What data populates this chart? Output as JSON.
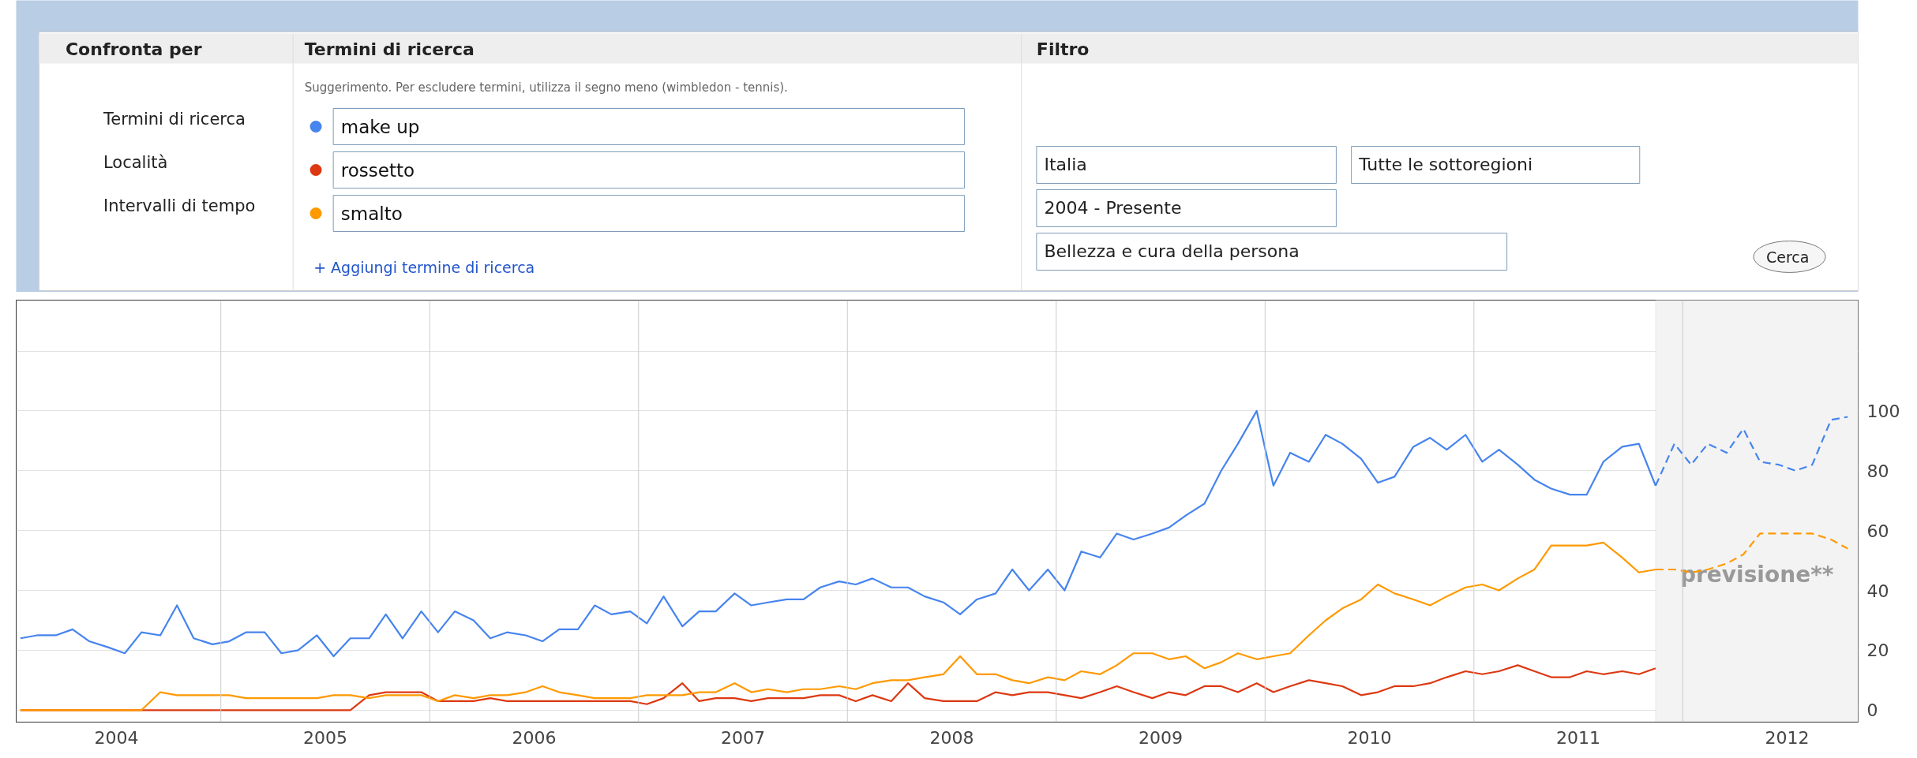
{
  "chart_data": {
    "type": "line",
    "x": [
      2004.04,
      2004.12,
      2004.21,
      2004.29,
      2004.37,
      2004.46,
      2004.54,
      2004.62,
      2004.71,
      2004.79,
      2004.87,
      2004.96,
      2005.04,
      2005.12,
      2005.21,
      2005.29,
      2005.37,
      2005.46,
      2005.54,
      2005.62,
      2005.71,
      2005.79,
      2005.87,
      2005.96,
      2006.04,
      2006.12,
      2006.21,
      2006.29,
      2006.37,
      2006.46,
      2006.54,
      2006.62,
      2006.71,
      2006.79,
      2006.87,
      2006.96,
      2007.04,
      2007.12,
      2007.21,
      2007.29,
      2007.37,
      2007.46,
      2007.54,
      2007.62,
      2007.71,
      2007.79,
      2007.87,
      2007.96,
      2008.04,
      2008.12,
      2008.21,
      2008.29,
      2008.37,
      2008.46,
      2008.54,
      2008.62,
      2008.71,
      2008.79,
      2008.87,
      2008.96,
      2009.04,
      2009.12,
      2009.21,
      2009.29,
      2009.37,
      2009.46,
      2009.54,
      2009.62,
      2009.71,
      2009.79,
      2009.87,
      2009.96,
      2010.04,
      2010.12,
      2010.21,
      2010.29,
      2010.37,
      2010.46,
      2010.54,
      2010.62,
      2010.71,
      2010.79,
      2010.87,
      2010.96,
      2011.04,
      2011.12,
      2011.21,
      2011.29,
      2011.37,
      2011.46,
      2011.54,
      2011.62,
      2011.71,
      2011.79,
      2011.87
    ],
    "series": [
      {
        "name": "make up",
        "color": "#4684ee",
        "values": [
          24,
          25,
          25,
          27,
          23,
          21,
          19,
          26,
          25,
          35,
          24,
          22,
          23,
          26,
          26,
          19,
          20,
          25,
          18,
          24,
          24,
          32,
          24,
          33,
          26,
          33,
          30,
          24,
          26,
          25,
          23,
          27,
          27,
          35,
          32,
          33,
          29,
          38,
          28,
          33,
          33,
          39,
          35,
          36,
          37,
          37,
          41,
          43,
          42,
          44,
          41,
          41,
          38,
          36,
          32,
          37,
          39,
          47,
          40,
          47,
          40,
          53,
          51,
          59,
          57,
          59,
          61,
          65,
          69,
          80,
          89,
          100,
          75,
          86,
          83,
          92,
          89,
          84,
          76,
          78,
          88,
          91,
          87,
          92,
          83,
          87,
          82,
          77,
          74,
          72,
          72,
          83,
          88,
          89,
          75
        ]
      },
      {
        "name": "rossetto",
        "color": "#dc3912",
        "values": [
          0,
          0,
          0,
          0,
          0,
          0,
          0,
          0,
          0,
          0,
          0,
          0,
          0,
          0,
          0,
          0,
          0,
          0,
          0,
          0,
          5,
          6,
          6,
          6,
          3,
          3,
          3,
          4,
          3,
          3,
          3,
          3,
          3,
          3,
          3,
          3,
          2,
          4,
          9,
          3,
          4,
          4,
          3,
          4,
          4,
          4,
          5,
          5,
          3,
          5,
          3,
          9,
          4,
          3,
          3,
          3,
          6,
          5,
          6,
          6,
          5,
          4,
          6,
          8,
          6,
          4,
          6,
          5,
          8,
          8,
          6,
          9,
          6,
          8,
          10,
          9,
          8,
          5,
          6,
          8,
          8,
          9,
          11,
          13,
          12,
          13,
          15,
          13,
          11,
          11,
          13,
          12,
          13,
          12,
          14
        ]
      },
      {
        "name": "smalto",
        "color": "#ff9900",
        "values": [
          0,
          0,
          0,
          0,
          0,
          0,
          0,
          0,
          6,
          5,
          5,
          5,
          5,
          4,
          4,
          4,
          4,
          4,
          5,
          5,
          4,
          5,
          5,
          5,
          3,
          5,
          4,
          5,
          5,
          6,
          8,
          6,
          5,
          4,
          4,
          4,
          5,
          5,
          5,
          6,
          6,
          9,
          6,
          7,
          6,
          7,
          7,
          8,
          7,
          9,
          10,
          10,
          11,
          12,
          18,
          12,
          12,
          10,
          9,
          11,
          10,
          13,
          12,
          15,
          19,
          19,
          17,
          18,
          14,
          16,
          19,
          17,
          18,
          19,
          25,
          30,
          34,
          37,
          42,
          39,
          37,
          35,
          38,
          41,
          42,
          40,
          44,
          47,
          55,
          55,
          55,
          56,
          51,
          46,
          47
        ]
      },
      {
        "color": "#4684ee",
        "line_style": "dashed",
        "x": [
          2011.87,
          2011.96,
          2012.04,
          2012.12,
          2012.21,
          2012.29,
          2012.37,
          2012.46,
          2012.54,
          2012.62,
          2012.71,
          2012.79
        ],
        "values": [
          75,
          89,
          82,
          89,
          86,
          94,
          83,
          82,
          80,
          82,
          97,
          98
        ]
      },
      {
        "color": "#ff9900",
        "line_style": "dashed",
        "x": [
          2011.87,
          2011.96,
          2012.04,
          2012.12,
          2012.21,
          2012.29,
          2012.37,
          2012.46,
          2012.54,
          2012.62,
          2012.71,
          2012.79
        ],
        "values": [
          47,
          47,
          46,
          47,
          49,
          52,
          59,
          59,
          59,
          59,
          57,
          54
        ]
      }
    ],
    "xlim": [
      2004.02,
      2012.84
    ],
    "xticks": [
      {
        "value": 2004.5,
        "label": "2004"
      },
      {
        "value": 2005.5,
        "label": "2005"
      },
      {
        "value": 2006.5,
        "label": "2006"
      },
      {
        "value": 2007.5,
        "label": "2007"
      },
      {
        "value": 2008.5,
        "label": "2008"
      },
      {
        "value": 2009.5,
        "label": "2009"
      },
      {
        "value": 2010.5,
        "label": "2010"
      },
      {
        "value": 2011.5,
        "label": "2011"
      },
      {
        "value": 2012.5,
        "label": "2012"
      }
    ],
    "ylim": [
      -4,
      137
    ],
    "yticks": [
      0,
      20,
      40,
      60,
      80,
      100,
      {
        "value": 120,
        "label": null
      }
    ],
    "grid": "y",
    "legend": "top",
    "line_style": "solid",
    "ref_lines": [
      {
        "axis": "x",
        "value": 2005,
        "color": "#cccccc"
      },
      {
        "axis": "x",
        "value": 2006,
        "color": "#cccccc"
      },
      {
        "axis": "x",
        "value": 2007,
        "color": "#cccccc"
      },
      {
        "axis": "x",
        "value": 2008,
        "color": "#cccccc"
      },
      {
        "axis": "x",
        "value": 2009,
        "color": "#cccccc"
      },
      {
        "axis": "x",
        "value": 2010,
        "color": "#cccccc"
      },
      {
        "axis": "x",
        "value": 2011,
        "color": "#cccccc"
      },
      {
        "axis": "x",
        "value": 2012,
        "color": "#cccccc"
      }
    ],
    "bands": [
      {
        "axis": "x",
        "from": 2011.87,
        "to": 2012.84,
        "label": "previsione**",
        "color": "#f3f3f3"
      }
    ],
    "annotations": [
      "Confronta per",
      "Termini di ricerca",
      "Filtro",
      "Termini di ricerca",
      "Località",
      "Intervalli di tempo",
      "Suggerimento. Per escludere termini, utilizza il segno meno (wimbledon - tennis).",
      "+ Aggiungi termine di ricerca",
      "Italia",
      "Tutte le sottoregioni",
      "2004 - Presente",
      "Bellezza e cura della persona",
      "Cerca"
    ]
  }
}
